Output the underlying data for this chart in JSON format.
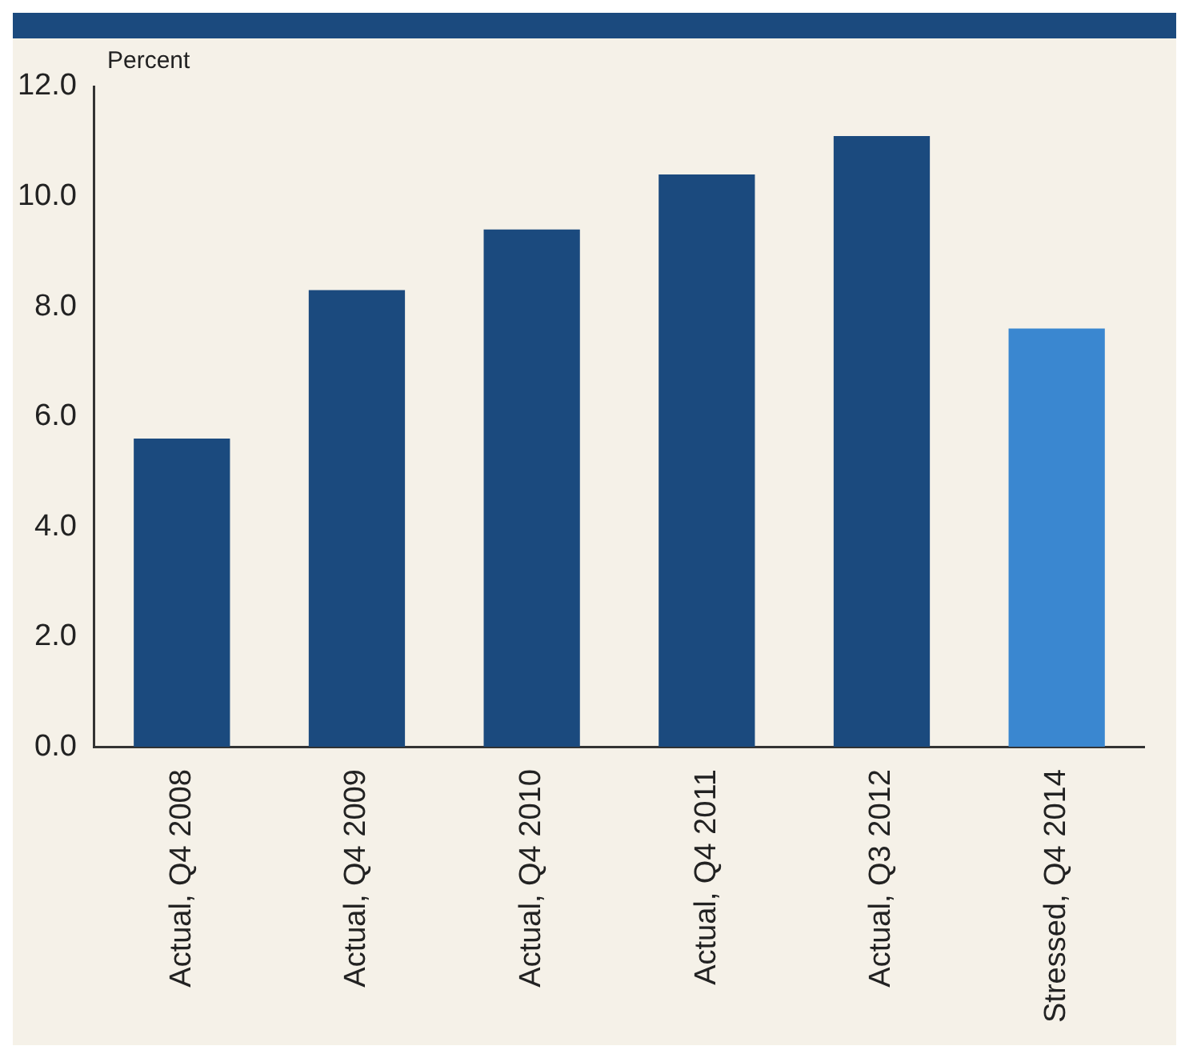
{
  "chart_data": {
    "type": "bar",
    "ylabel": "Percent",
    "categories": [
      "Actual, Q4 2008",
      "Actual, Q4 2009",
      "Actual, Q4 2010",
      "Actual, Q4 2011",
      "Actual, Q3 2012",
      "Stressed, Q4 2014"
    ],
    "values": [
      5.6,
      8.3,
      9.4,
      10.4,
      11.1,
      7.6
    ],
    "colors": [
      "#1b4a7e",
      "#1b4a7e",
      "#1b4a7e",
      "#1b4a7e",
      "#1b4a7e",
      "#3a87d0"
    ],
    "ylim": [
      0,
      12
    ],
    "yticks": [
      {
        "value": 0,
        "label": "0.0"
      },
      {
        "value": 2,
        "label": "2.0"
      },
      {
        "value": 4,
        "label": "4.0"
      },
      {
        "value": 6,
        "label": "6.0"
      },
      {
        "value": 8,
        "label": "8.0"
      },
      {
        "value": 10,
        "label": "10.0"
      },
      {
        "value": 12,
        "label": "12.0"
      }
    ],
    "grid": false,
    "legend": false
  }
}
